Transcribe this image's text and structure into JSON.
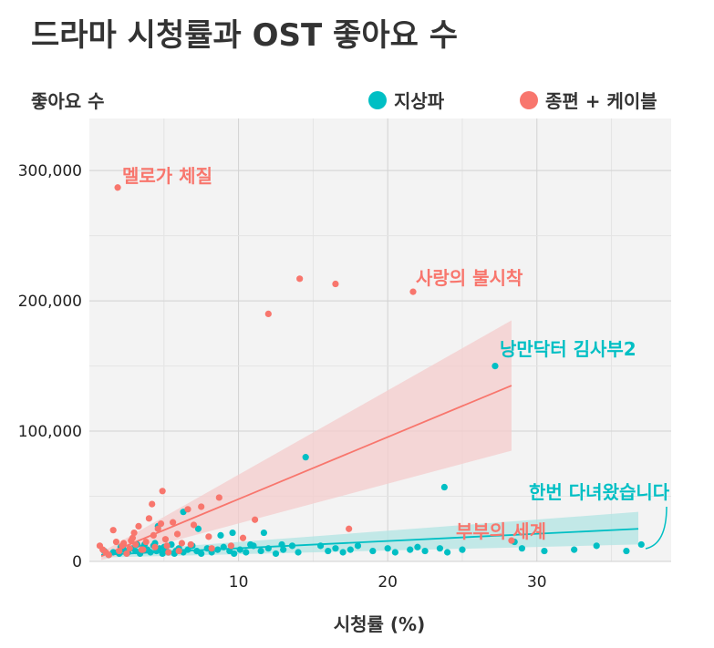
{
  "chart_data": {
    "type": "scatter",
    "title": "드라마 시청률과 OST 좋아요 수",
    "xlabel": "시청률 (%)",
    "ylabel": "좋아요 수",
    "xlim": [
      0,
      39
    ],
    "ylim": [
      0,
      340000
    ],
    "xticks": [
      10,
      20,
      30
    ],
    "yticks": [
      0,
      100000,
      200000,
      300000
    ],
    "ytick_labels": [
      "0",
      "100,000",
      "200,000",
      "300,000"
    ],
    "grid": true,
    "legend_position": "top",
    "series": [
      {
        "name": "지상파",
        "color": "#00bfc4",
        "band_color": "#b2e4e3",
        "trend": {
          "x": [
            0.8,
            36.8
          ],
          "y": [
            5000,
            25000
          ],
          "band_lo": [
            3000,
            13000
          ],
          "band_hi": [
            7000,
            38000
          ]
        },
        "points": [
          [
            1.0,
            8000
          ],
          [
            1.3,
            5000
          ],
          [
            1.6,
            7000
          ],
          [
            2.0,
            6000
          ],
          [
            2.3,
            9000
          ],
          [
            2.6,
            7000
          ],
          [
            2.9,
            10000
          ],
          [
            3.1,
            8000
          ],
          [
            3.4,
            6000
          ],
          [
            3.6,
            11000
          ],
          [
            3.9,
            9000
          ],
          [
            4.1,
            7000
          ],
          [
            4.3,
            12000
          ],
          [
            4.5,
            8000
          ],
          [
            4.7,
            10000
          ],
          [
            4.9,
            6000
          ],
          [
            5.1,
            9000
          ],
          [
            5.3,
            7000
          ],
          [
            5.5,
            13000
          ],
          [
            5.8,
            8000
          ],
          [
            6.0,
            10000
          ],
          [
            6.3,
            7000
          ],
          [
            6.6,
            9000
          ],
          [
            6.9,
            12000
          ],
          [
            7.2,
            8000
          ],
          [
            7.5,
            6000
          ],
          [
            7.9,
            10000
          ],
          [
            8.2,
            7000
          ],
          [
            8.6,
            9000
          ],
          [
            9.0,
            11000
          ],
          [
            9.4,
            8000
          ],
          [
            9.7,
            6000
          ],
          [
            10.1,
            9000
          ],
          [
            10.5,
            7000
          ],
          [
            11.0,
            12000
          ],
          [
            11.5,
            8000
          ],
          [
            12.0,
            10000
          ],
          [
            12.5,
            6000
          ],
          [
            13.0,
            9000
          ],
          [
            13.6,
            12000
          ],
          [
            14.0,
            7000
          ],
          [
            14.5,
            80000
          ],
          [
            15.5,
            12000
          ],
          [
            16.0,
            8000
          ],
          [
            16.5,
            10000
          ],
          [
            17.0,
            7000
          ],
          [
            17.5,
            9000
          ],
          [
            18.0,
            12000
          ],
          [
            19.0,
            8000
          ],
          [
            20.0,
            10000
          ],
          [
            20.5,
            7000
          ],
          [
            21.5,
            9000
          ],
          [
            22.0,
            11000
          ],
          [
            22.5,
            8000
          ],
          [
            23.5,
            10000
          ],
          [
            24.0,
            7000
          ],
          [
            25.0,
            9000
          ],
          [
            23.8,
            57000
          ],
          [
            27.2,
            150000
          ],
          [
            28.5,
            15000
          ],
          [
            29.0,
            10000
          ],
          [
            30.5,
            8000
          ],
          [
            32.5,
            9000
          ],
          [
            34.0,
            12000
          ],
          [
            36.0,
            8000
          ],
          [
            37.0,
            13000
          ],
          [
            7.3,
            25000
          ],
          [
            6.3,
            38000
          ],
          [
            8.8,
            20000
          ],
          [
            4.6,
            27000
          ],
          [
            5.0,
            11000
          ],
          [
            5.7,
            6000
          ],
          [
            3.2,
            13000
          ],
          [
            2.1,
            11000
          ],
          [
            11.7,
            22000
          ],
          [
            12.9,
            13000
          ],
          [
            9.6,
            22000
          ],
          [
            10.8,
            13000
          ],
          [
            3.7,
            13000
          ],
          [
            4.4,
            14000
          ]
        ]
      },
      {
        "name": "종편 + 케이블",
        "color": "#f8766d",
        "band_color": "#f4cccc",
        "trend": {
          "x": [
            0.8,
            28.3
          ],
          "y": [
            4000,
            135000
          ],
          "band_lo": [
            1000,
            85000
          ],
          "band_hi": [
            7000,
            185000
          ]
        },
        "points": [
          [
            0.7,
            12000
          ],
          [
            0.9,
            9000
          ],
          [
            1.1,
            7000
          ],
          [
            1.3,
            5000
          ],
          [
            1.6,
            24000
          ],
          [
            1.8,
            15000
          ],
          [
            2.0,
            8000
          ],
          [
            2.2,
            12000
          ],
          [
            2.5,
            6000
          ],
          [
            2.7,
            10000
          ],
          [
            2.9,
            18000
          ],
          [
            3.1,
            13000
          ],
          [
            3.3,
            27000
          ],
          [
            3.6,
            9000
          ],
          [
            3.8,
            15000
          ],
          [
            4.0,
            33000
          ],
          [
            4.2,
            44000
          ],
          [
            4.4,
            11000
          ],
          [
            4.6,
            25000
          ],
          [
            4.9,
            54000
          ],
          [
            5.1,
            17000
          ],
          [
            5.3,
            7000
          ],
          [
            5.6,
            30000
          ],
          [
            5.9,
            21000
          ],
          [
            6.2,
            14000
          ],
          [
            6.6,
            40000
          ],
          [
            7.0,
            28000
          ],
          [
            7.5,
            42000
          ],
          [
            8.0,
            19000
          ],
          [
            8.7,
            49000
          ],
          [
            9.5,
            12000
          ],
          [
            10.3,
            18000
          ],
          [
            11.1,
            32000
          ],
          [
            12.0,
            190000
          ],
          [
            14.1,
            217000
          ],
          [
            16.5,
            213000
          ],
          [
            17.4,
            25000
          ],
          [
            21.7,
            207000
          ],
          [
            1.9,
            287000
          ],
          [
            28.3,
            16000
          ],
          [
            2.3,
            14000
          ],
          [
            3.0,
            22000
          ],
          [
            4.3,
            20000
          ],
          [
            4.8,
            29000
          ],
          [
            6.0,
            8000
          ],
          [
            8.2,
            10000
          ],
          [
            3.5,
            9000
          ],
          [
            2.8,
            16000
          ],
          [
            5.2,
            12000
          ],
          [
            6.8,
            13000
          ]
        ]
      }
    ],
    "annotations": [
      {
        "text": "멜로가 체질",
        "series": 1
      },
      {
        "text": "사랑의 불시착",
        "series": 1
      },
      {
        "text": "낭만닥터 김사부2",
        "series": 0
      },
      {
        "text": "한번 다녀왔습니다",
        "series": 0
      },
      {
        "text": "부부의 세계",
        "series": 1
      }
    ]
  }
}
